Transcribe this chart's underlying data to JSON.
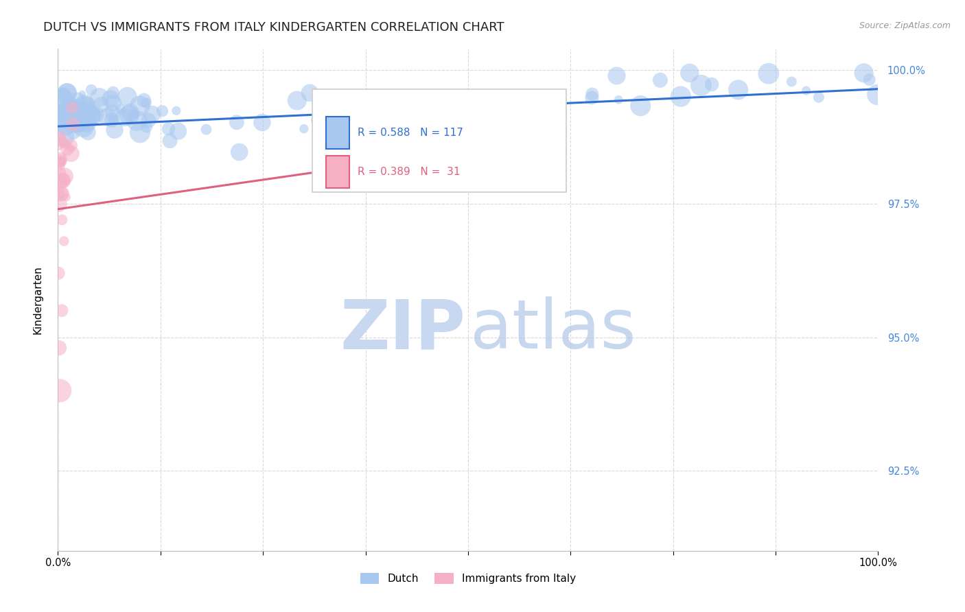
{
  "title": "DUTCH VS IMMIGRANTS FROM ITALY KINDERGARTEN CORRELATION CHART",
  "source_text": "Source: ZipAtlas.com",
  "ylabel": "Kindergarten",
  "x_min": 0.0,
  "x_max": 1.0,
  "y_min": 0.91,
  "y_max": 1.004,
  "y_ticks": [
    0.925,
    0.95,
    0.975,
    1.0
  ],
  "y_tick_labels": [
    "92.5%",
    "95.0%",
    "97.5%",
    "100.0%"
  ],
  "dutch_color": "#a8c8f0",
  "italy_color": "#f5b0c5",
  "dutch_line_color": "#3070d0",
  "italy_line_color": "#e06080",
  "R_dutch": 0.588,
  "N_dutch": 117,
  "R_italy": 0.389,
  "N_italy": 31,
  "watermark_zip_color": "#c8d8f0",
  "watermark_atlas_color": "#b0c8e8",
  "background_color": "#ffffff",
  "grid_color": "#d0d0d0",
  "right_tick_color": "#4488dd",
  "title_fontsize": 13,
  "axis_label_fontsize": 11,
  "tick_fontsize": 10
}
